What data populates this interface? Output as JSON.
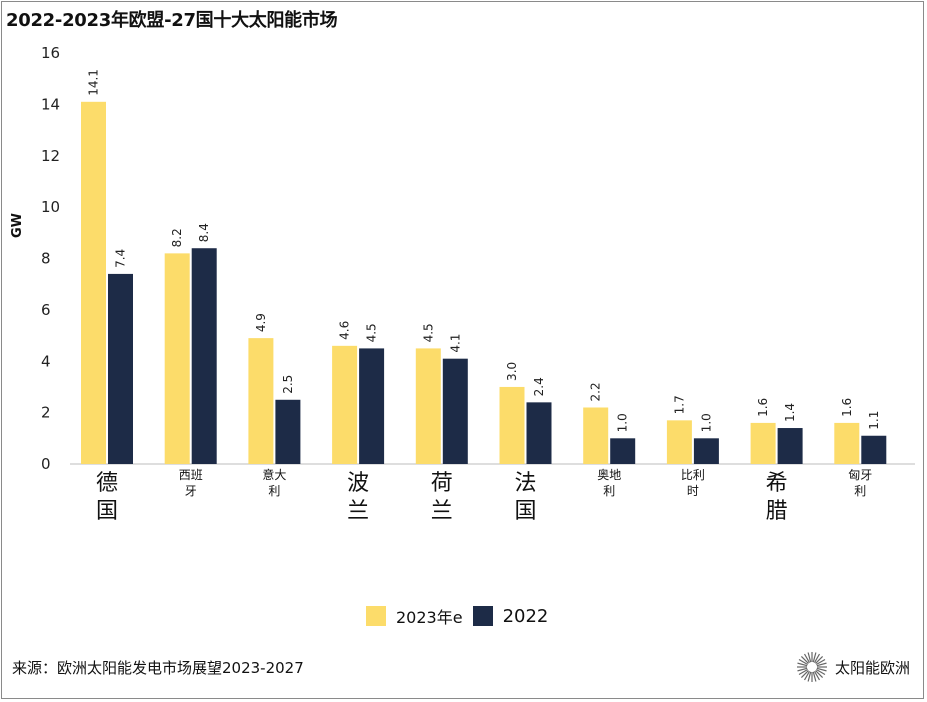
{
  "title": "2022-2023年欧盟-27国十大太阳能市场",
  "source": "来源：欧洲太阳能发电市场展望2023-2027",
  "brand": {
    "name": "太阳能欧洲",
    "icon": "sunburst-logo-icon"
  },
  "colors": {
    "series_2023": "#FCDC6A",
    "series_2022": "#1D2B47",
    "axis": "#bdbdbd"
  },
  "chart_data": {
    "type": "bar",
    "title": "2022-2023年欧盟-27国十大太阳能市场",
    "xlabel": "",
    "ylabel": "GW",
    "ylim": [
      0,
      16
    ],
    "yticks": [
      0,
      2,
      4,
      6,
      8,
      10,
      12,
      14,
      16
    ],
    "grid": false,
    "legend_position": "bottom",
    "categories": [
      {
        "lines": [
          "德",
          "国"
        ],
        "size": "large"
      },
      {
        "lines": [
          "西班",
          "牙"
        ],
        "size": "small"
      },
      {
        "lines": [
          "意大",
          "利"
        ],
        "size": "small"
      },
      {
        "lines": [
          "波",
          "兰"
        ],
        "size": "large"
      },
      {
        "lines": [
          "荷",
          "兰"
        ],
        "size": "large"
      },
      {
        "lines": [
          "法",
          "国"
        ],
        "size": "large"
      },
      {
        "lines": [
          "奥地",
          "利"
        ],
        "size": "small"
      },
      {
        "lines": [
          "比利",
          "时"
        ],
        "size": "small"
      },
      {
        "lines": [
          "希",
          "腊"
        ],
        "size": "large"
      },
      {
        "lines": [
          "匈牙",
          "利"
        ],
        "size": "small"
      }
    ],
    "series": [
      {
        "name": "2023年e",
        "values": [
          14.1,
          8.2,
          4.9,
          4.6,
          4.5,
          3.0,
          2.2,
          1.7,
          1.6,
          1.6
        ],
        "labels": [
          "14.1",
          "8.2",
          "4.9",
          "4.6",
          "4.5",
          "3.0",
          "2.2",
          "1.7",
          "1.6",
          "1.6"
        ]
      },
      {
        "name": "2022",
        "values": [
          7.4,
          8.4,
          2.5,
          4.5,
          4.1,
          2.4,
          1.0,
          1.0,
          1.4,
          1.1
        ],
        "labels": [
          "7.4",
          "8.4",
          "2.5",
          "4.5",
          "4.1",
          "2.4",
          "1.0",
          "1.0",
          "1.4",
          "1.1"
        ]
      }
    ]
  }
}
